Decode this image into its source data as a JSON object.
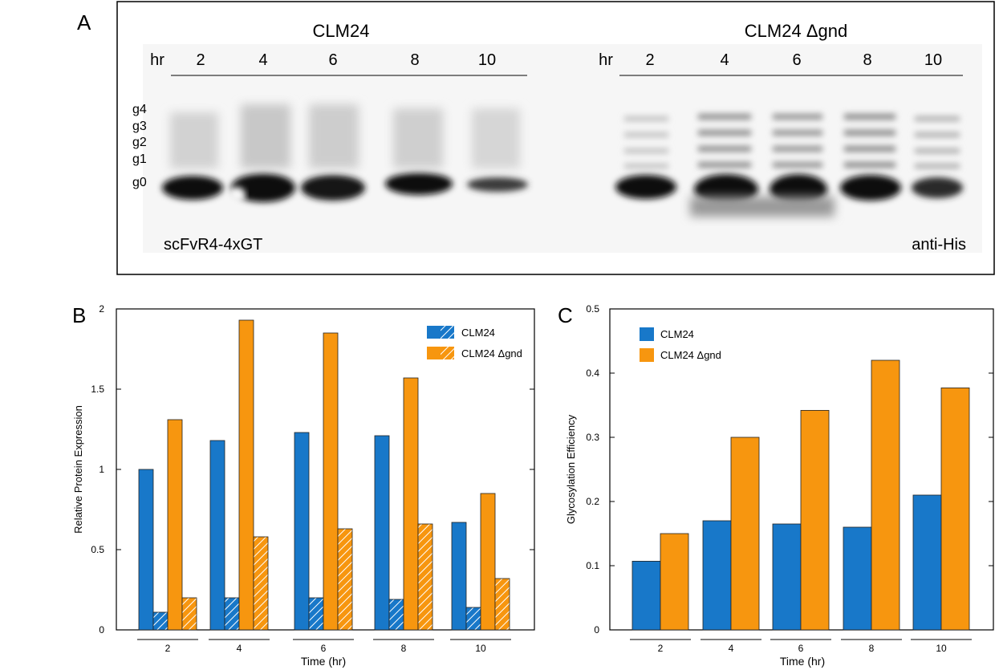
{
  "panel_a": {
    "letter": "A",
    "left_title": "CLM24",
    "right_title": "CLM24 Δgnd",
    "hr_label": "hr",
    "lanes": [
      "2",
      "4",
      "6",
      "8",
      "10"
    ],
    "band_labels": [
      "g4",
      "g3",
      "g2",
      "g1",
      "g0"
    ],
    "protein_label": "scFvR4-4xGT",
    "antibody_label": "anti-His"
  },
  "chart_data": [
    {
      "panel": "B",
      "type": "bar",
      "categories": [
        "2",
        "4",
        "6",
        "8",
        "10"
      ],
      "series": [
        {
          "name": "CLM24",
          "values": [
            1.0,
            1.18,
            1.23,
            1.21,
            0.67
          ],
          "color": "#1878c9",
          "pattern": "solid"
        },
        {
          "name": "",
          "values": [
            0.11,
            0.2,
            0.2,
            0.19,
            0.14
          ],
          "color": "#1878c9",
          "pattern": "hatched"
        },
        {
          "name": "CLM24 Δgnd",
          "values": [
            1.31,
            1.93,
            1.85,
            1.57,
            0.85
          ],
          "color": "#f7960f",
          "pattern": "solid"
        },
        {
          "name": "",
          "values": [
            0.2,
            0.58,
            0.63,
            0.66,
            0.32
          ],
          "color": "#f7960f",
          "pattern": "hatched"
        }
      ],
      "legend": [
        {
          "label": "CLM24",
          "color": "#1878c9"
        },
        {
          "label": "CLM24 Δgnd",
          "color": "#f7960f"
        }
      ],
      "xlabel": "Time (hr)",
      "ylabel": "Relative Protein Expression",
      "ylim": [
        0,
        2
      ],
      "yticks": [
        "0",
        "0.5",
        "1",
        "1.5",
        "2"
      ],
      "legend_position": "top-right",
      "grid": false
    },
    {
      "panel": "C",
      "type": "bar",
      "categories": [
        "2",
        "4",
        "6",
        "8",
        "10"
      ],
      "series": [
        {
          "name": "CLM24",
          "values": [
            0.107,
            0.17,
            0.165,
            0.16,
            0.21
          ],
          "color": "#1878c9"
        },
        {
          "name": "CLM24 Δgnd",
          "values": [
            0.15,
            0.3,
            0.342,
            0.42,
            0.377
          ],
          "color": "#f7960f"
        }
      ],
      "xlabel": "Time (hr)",
      "ylabel": "Glycosylation Efficiency",
      "ylim": [
        0,
        0.5
      ],
      "yticks": [
        "0",
        "0.1",
        "0.2",
        "0.3",
        "0.4",
        "0.5"
      ],
      "legend_position": "top-left",
      "grid": false
    }
  ]
}
